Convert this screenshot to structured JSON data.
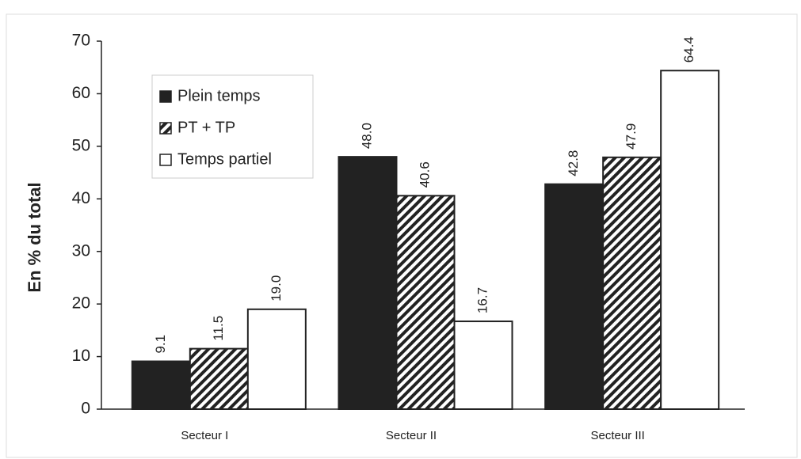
{
  "chart_data": {
    "type": "bar",
    "y_label": "En % du total",
    "categories": [
      "Secteur I",
      "Secteur II",
      "Secteur III"
    ],
    "series": [
      {
        "name": "Plein temps",
        "color": "#222222",
        "values": [
          9.1,
          48.0,
          42.8
        ],
        "value_labels": [
          "9.1",
          "48.0",
          "42.8"
        ]
      },
      {
        "name": "PT + TP",
        "color": "#222222",
        "pattern": "hatch",
        "values": [
          11.5,
          40.6,
          47.9
        ],
        "value_labels": [
          "11.5",
          "40.6",
          "47.9"
        ]
      },
      {
        "name": "Temps partiel",
        "color": "#ffffff",
        "values": [
          19.0,
          16.7,
          64.4
        ],
        "value_labels": [
          "19.0",
          "16.7",
          "64.4"
        ]
      }
    ],
    "ylim": [
      0,
      70
    ],
    "yticks": [
      0,
      10,
      20,
      30,
      40,
      50,
      60,
      70
    ],
    "legend": "upper left"
  }
}
